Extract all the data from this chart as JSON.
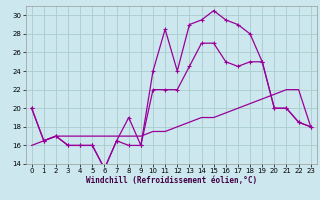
{
  "xlabel": "Windchill (Refroidissement éolien,°C)",
  "xlim": [
    -0.5,
    23.5
  ],
  "ylim": [
    14,
    31
  ],
  "xticks": [
    0,
    1,
    2,
    3,
    4,
    5,
    6,
    7,
    8,
    9,
    10,
    11,
    12,
    13,
    14,
    15,
    16,
    17,
    18,
    19,
    20,
    21,
    22,
    23
  ],
  "yticks": [
    14,
    16,
    18,
    20,
    22,
    24,
    26,
    28,
    30
  ],
  "background_color": "#cce8ee",
  "grid_color": "#aacccc",
  "line_color": "#990099",
  "line1_y": [
    20,
    16.5,
    17,
    16,
    16,
    16,
    13.5,
    16.5,
    19,
    16,
    24,
    28.5,
    24,
    29,
    29.5,
    30.5,
    29.5,
    29,
    28,
    25,
    20,
    20,
    18.5,
    18
  ],
  "line2_y": [
    20,
    16.5,
    17,
    16,
    16,
    16,
    13.5,
    16.5,
    16,
    16,
    22,
    22,
    22,
    24.5,
    27,
    27,
    25,
    24.5,
    25,
    25,
    20,
    20,
    18.5,
    18
  ],
  "line3_y": [
    16,
    16.5,
    17,
    17,
    17,
    17,
    17,
    17,
    17,
    17,
    17.5,
    17.5,
    18,
    18.5,
    19,
    19,
    19.5,
    20,
    20.5,
    21,
    21.5,
    22,
    22,
    18
  ]
}
